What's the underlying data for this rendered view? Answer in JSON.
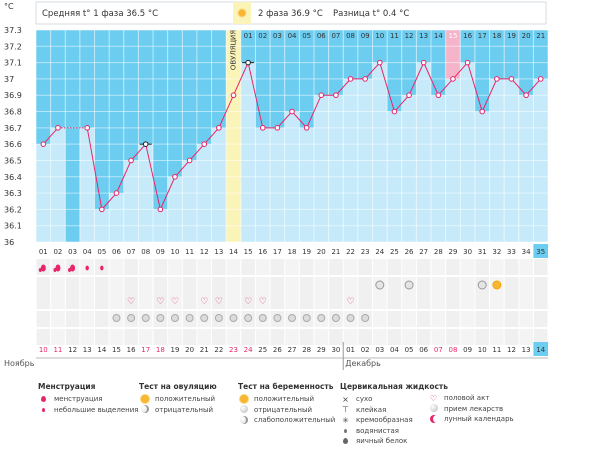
{
  "header": {
    "phase1_label": "Средняя t° 1 фаза",
    "phase1_value": "36.5 °C",
    "phase2_label": "2 фаза",
    "phase2_value": "36.9 °C",
    "diff_label": "Разница t°",
    "diff_value": "0.4 °C",
    "unit": "°C"
  },
  "colors": {
    "phase1_fill": "#6ccdf0",
    "phase2_fill": "#c6eafa",
    "ovulation_fill": "#faf4b8",
    "line": "#e8246a",
    "highlight_day": "#f6b4cb"
  },
  "chart_data": {
    "type": "line",
    "ylim": [
      36,
      37.3
    ],
    "yticks": [
      "36",
      "36.1",
      "36.2",
      "36.3",
      "36.4",
      "36.5",
      "36.6",
      "36.7",
      "36.8",
      "36.9",
      "37",
      "37.1",
      "37.2",
      "37.3"
    ],
    "cycle_days": [
      "01",
      "02",
      "03",
      "04",
      "05",
      "06",
      "07",
      "08",
      "09",
      "10",
      "11",
      "12",
      "13",
      "14",
      "15",
      "16",
      "17",
      "18",
      "19",
      "20",
      "21",
      "22",
      "23",
      "24",
      "25",
      "26",
      "27",
      "28",
      "29",
      "30",
      "31",
      "32",
      "33",
      "34",
      "35"
    ],
    "phase2_days": [
      "01",
      "02",
      "03",
      "04",
      "05",
      "06",
      "07",
      "08",
      "09",
      "10",
      "11",
      "12",
      "13",
      "14",
      "15",
      "16",
      "17",
      "18",
      "19",
      "20",
      "21"
    ],
    "ovulation_day": "14",
    "ovulation_label": "ОВУЛЯЦИЯ",
    "highlighted_phase2_day": "15",
    "temperatures": [
      36.6,
      36.7,
      null,
      36.7,
      36.2,
      36.3,
      36.5,
      36.6,
      36.2,
      36.4,
      36.5,
      36.6,
      36.7,
      36.9,
      37.1,
      36.7,
      36.7,
      36.8,
      36.7,
      36.9,
      36.9,
      37.0,
      37.0,
      37.1,
      36.8,
      36.9,
      37.1,
      36.9,
      37.0,
      37.1,
      36.8,
      37.0,
      37.0,
      36.9,
      37.0
    ],
    "special_points": {
      "open_black": [
        8,
        15
      ]
    },
    "current_day": "35"
  },
  "rows": {
    "menstruation": [
      "big",
      "big",
      "big",
      "small",
      "small"
    ],
    "hearts": [
      7,
      9,
      10,
      12,
      13,
      15,
      16,
      22
    ],
    "pills_from": 6,
    "pills_to": 23,
    "mucus_icons": [
      {
        "day": 24,
        "kind": "cream"
      },
      {
        "day": 26,
        "kind": "sticky"
      },
      {
        "day": 31,
        "kind": "sticky"
      },
      {
        "day": 32,
        "kind": "egg"
      }
    ]
  },
  "calendar": {
    "dates": [
      "10",
      "11",
      "12",
      "13",
      "14",
      "15",
      "16",
      "17",
      "18",
      "19",
      "20",
      "21",
      "22",
      "23",
      "24",
      "25",
      "26",
      "27",
      "28",
      "29",
      "30",
      "01",
      "02",
      "03",
      "04",
      "05",
      "06",
      "07",
      "08",
      "09",
      "10",
      "11",
      "12",
      "13",
      "14"
    ],
    "red_dates_index": [
      0,
      1,
      7,
      8,
      13,
      14,
      27,
      28
    ],
    "month_1": "Ноябрь",
    "month_2": "Декабрь"
  },
  "legend": {
    "menstruation": {
      "title": "Менструация",
      "items": [
        "менструация",
        "небольшие выделения"
      ]
    },
    "ovulation_test": {
      "title": "Тест на овуляцию",
      "items": [
        "положительный",
        "отрицательный"
      ]
    },
    "pregnancy_test": {
      "title": "Тест на беременность",
      "items": [
        "положительный",
        "отрицательный",
        "слабоположительный"
      ]
    },
    "cervical": {
      "title": "Цервикальная жидкость",
      "items": [
        "сухо",
        "клейкая",
        "кремообразная",
        "водянистая",
        "яичный белок"
      ]
    },
    "other": {
      "items": [
        "половой акт",
        "прием лекарств",
        "лунный календарь"
      ]
    }
  }
}
